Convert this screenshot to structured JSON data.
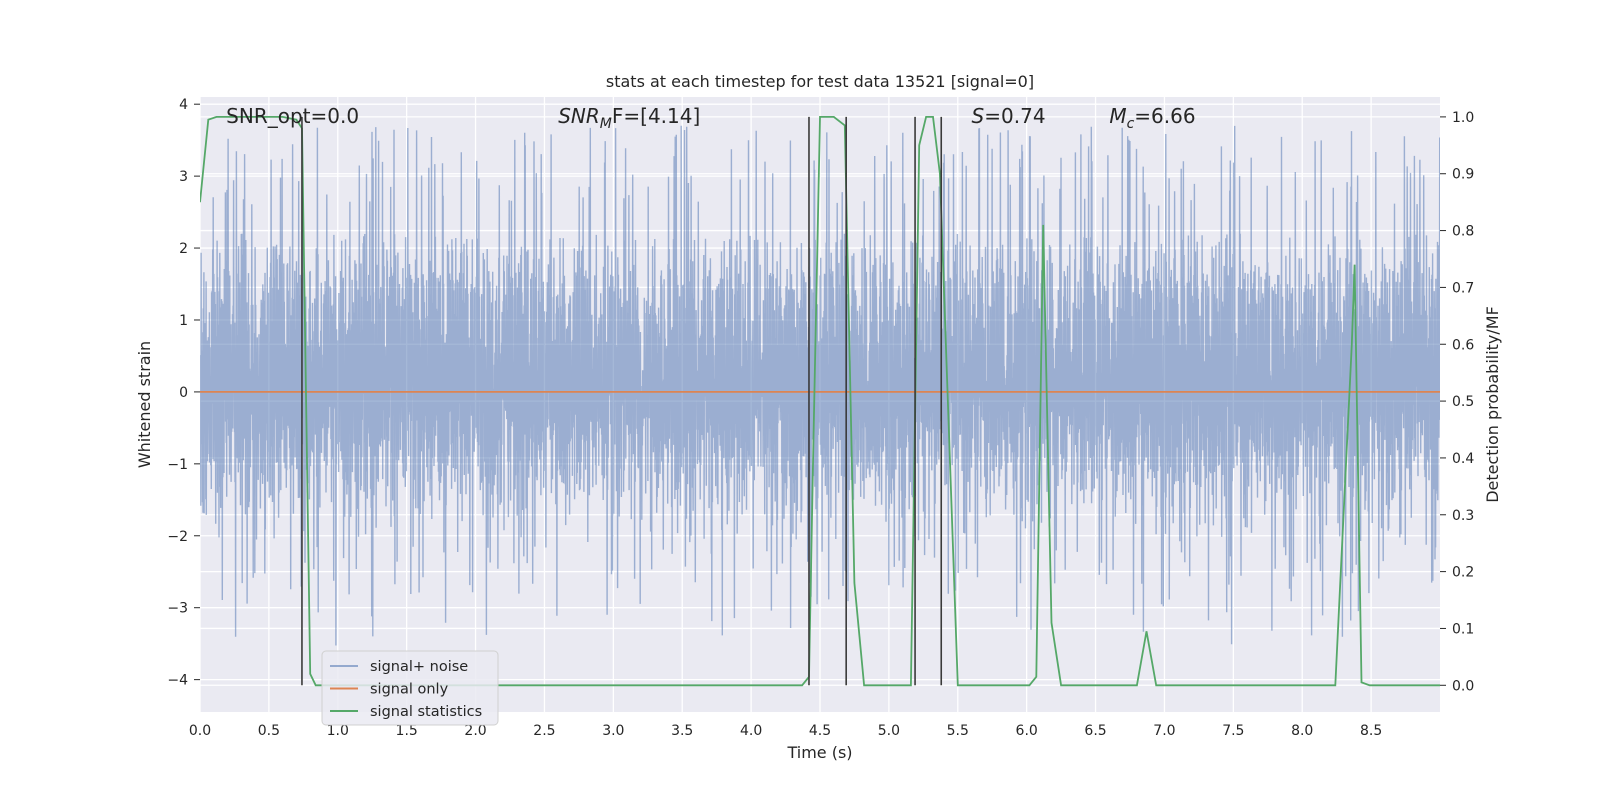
{
  "chart_data": {
    "type": "line",
    "title": "stats at each timestep for test data 13521 [signal=0]",
    "xlabel": "Time (s)",
    "ylabel_left": "Whitened strain",
    "ylabel_right": "Detection probability/MF",
    "xlim": [
      0.0,
      9.0
    ],
    "ylim_left": [
      -4.45,
      4.1
    ],
    "ylim_right": [
      -0.047,
      1.035
    ],
    "x_ticks": [
      0.0,
      0.5,
      1.0,
      1.5,
      2.0,
      2.5,
      3.0,
      3.5,
      4.0,
      4.5,
      5.0,
      5.5,
      6.0,
      6.5,
      7.0,
      7.5,
      8.0,
      8.5
    ],
    "x_tick_labels": [
      "0.0",
      "0.5",
      "1.0",
      "1.5",
      "2.0",
      "2.5",
      "3.0",
      "3.5",
      "4.0",
      "4.5",
      "5.0",
      "5.5",
      "6.0",
      "6.5",
      "7.0",
      "7.5",
      "8.0",
      "8.5"
    ],
    "y_left_ticks": [
      4,
      3,
      2,
      1,
      0,
      -1,
      -2,
      -3,
      -4
    ],
    "y_left_tick_labels": [
      "4",
      "3",
      "2",
      "1",
      "0",
      "−1",
      "−2",
      "−3",
      "−4"
    ],
    "y_right_ticks": [
      1.0,
      0.9,
      0.8,
      0.7,
      0.6,
      0.5,
      0.4,
      0.3,
      0.2,
      0.1,
      0.0
    ],
    "y_right_tick_labels": [
      "1.0",
      "0.9",
      "0.8",
      "0.7",
      "0.6",
      "0.5",
      "0.4",
      "0.3",
      "0.2",
      "0.1",
      "0.0"
    ],
    "grid": true,
    "legend_location": "lower-left",
    "annotations": [
      {
        "text": "SNR_opt=0.0"
      },
      {
        "prefix": "SNR",
        "sub": "M",
        "suffix": "F=[4.14]"
      },
      {
        "prefix": "S",
        "suffix": "=0.74"
      },
      {
        "prefix": "M",
        "sub": "c",
        "suffix": "=6.66"
      }
    ],
    "series": [
      {
        "name": "signal+ noise",
        "color": "#4c72b0",
        "axis": "left",
        "kind": "dense-noise",
        "samples": 4500,
        "core_range": [
          -1.7,
          2.2
        ],
        "extreme_range": [
          -3.7,
          3.7
        ]
      },
      {
        "name": "signal only",
        "color": "#dd8452",
        "axis": "left",
        "x": [
          0.0,
          9.0
        ],
        "y": [
          0.0,
          0.0
        ]
      },
      {
        "name": "signal statistics",
        "color": "#55a868",
        "axis": "right",
        "x": [
          0.0,
          0.06,
          0.12,
          0.6,
          0.7,
          0.74,
          0.8,
          0.84,
          0.92,
          4.37,
          4.42,
          4.45,
          4.5,
          4.6,
          4.68,
          4.75,
          4.82,
          5.16,
          5.22,
          5.27,
          5.32,
          5.37,
          5.5,
          6.02,
          6.07,
          6.12,
          6.18,
          6.25,
          6.8,
          6.87,
          6.94,
          8.24,
          8.36,
          8.38,
          8.43,
          8.49,
          9.0
        ],
        "y": [
          0.85,
          0.995,
          1.0,
          1.0,
          0.995,
          0.98,
          0.02,
          0.0,
          0.0,
          0.0,
          0.015,
          0.4,
          1.0,
          1.0,
          0.985,
          0.18,
          0.0,
          0.0,
          0.95,
          1.0,
          1.0,
          0.9,
          0.0,
          0.0,
          0.015,
          0.81,
          0.11,
          0.0,
          0.0,
          0.095,
          0.0,
          0.0,
          0.6,
          0.74,
          0.005,
          0.0,
          0.0
        ]
      },
      {
        "name": "",
        "color": "#3a3a3a",
        "axis": "right",
        "kind": "vertical-markers",
        "x": [
          0.74,
          4.42,
          4.69,
          5.19,
          5.38
        ],
        "y_range": [
          0.0,
          1.0
        ]
      }
    ]
  }
}
